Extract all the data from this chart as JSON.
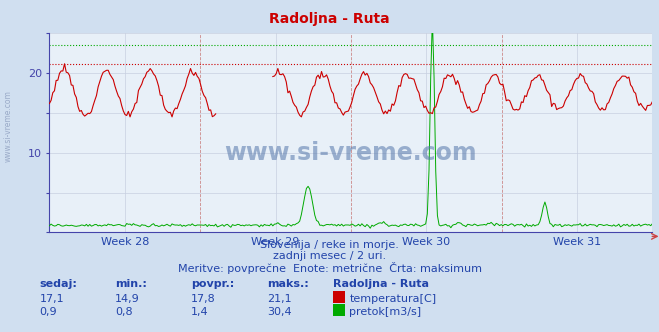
{
  "title": "Radoljna - Ruta",
  "bg_color": "#d0dff0",
  "plot_bg_color": "#e8f0f8",
  "grid_color": "#c8d0e0",
  "title_color": "#cc0000",
  "axis_color": "#4444aa",
  "text_color": "#2244aa",
  "week_labels": [
    "Week 28",
    "Week 29",
    "Week 30",
    "Week 31"
  ],
  "ylim": [
    0,
    25
  ],
  "yticks": [
    0,
    5,
    10,
    15,
    20,
    25
  ],
  "ytick_labels": [
    "",
    "",
    "10",
    "",
    "20",
    ""
  ],
  "temp_max_line": 21.1,
  "flow_max_line": 23.5,
  "temp_color": "#cc0000",
  "flow_color": "#00aa00",
  "watermark_text": "www.si-vreme.com",
  "subtitle1": "Slovenija / reke in morje.",
  "subtitle2": "zadnji mesec / 2 uri.",
  "subtitle3": "Meritve: povprečne  Enote: metrične  Črta: maksimum",
  "n_points": 360
}
